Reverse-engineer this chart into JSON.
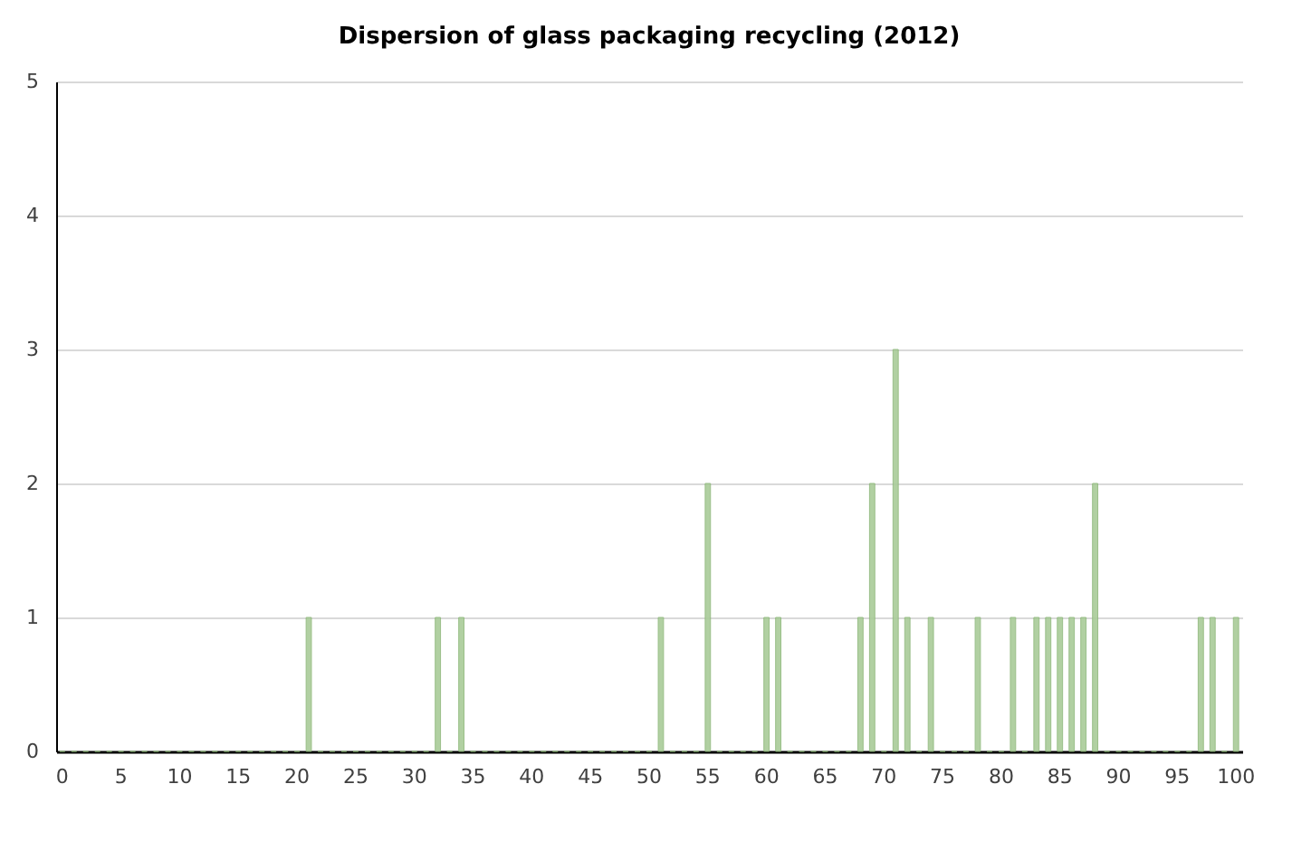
{
  "chart_data": {
    "type": "bar",
    "title": "Dispersion of glass packaging recycling (2012)",
    "categories": [
      "0",
      null,
      null,
      null,
      null,
      "5",
      null,
      null,
      null,
      null,
      "10",
      null,
      null,
      null,
      null,
      "15",
      null,
      null,
      null,
      null,
      "20",
      null,
      null,
      null,
      null,
      "25",
      null,
      null,
      null,
      null,
      "30",
      null,
      null,
      null,
      null,
      "35",
      null,
      null,
      null,
      null,
      "40",
      null,
      null,
      null,
      null,
      "45",
      null,
      null,
      null,
      null,
      "50",
      null,
      null,
      null,
      null,
      "55",
      null,
      null,
      null,
      null,
      "60",
      null,
      null,
      null,
      null,
      "65",
      null,
      null,
      null,
      null,
      "70",
      null,
      null,
      null,
      null,
      "75",
      null,
      null,
      null,
      null,
      "80",
      null,
      null,
      null,
      null,
      "85",
      null,
      null,
      null,
      null,
      "90",
      null,
      null,
      null,
      null,
      "95",
      null,
      null,
      null,
      null,
      "100"
    ],
    "values": [
      0,
      0,
      0,
      0,
      0,
      0,
      0,
      0,
      0,
      0,
      0,
      0,
      0,
      0,
      0,
      0,
      0,
      0,
      0,
      0,
      0,
      1,
      0,
      0,
      0,
      0,
      0,
      0,
      0,
      0,
      0,
      0,
      1,
      0,
      1,
      0,
      0,
      0,
      0,
      0,
      0,
      0,
      0,
      0,
      0,
      0,
      0,
      0,
      0,
      0,
      0,
      1,
      0,
      0,
      0,
      2,
      0,
      0,
      0,
      0,
      1,
      1,
      0,
      0,
      0,
      0,
      0,
      0,
      1,
      2,
      0,
      3,
      1,
      0,
      1,
      0,
      0,
      0,
      1,
      0,
      0,
      1,
      0,
      1,
      1,
      1,
      1,
      1,
      2,
      0,
      0,
      0,
      0,
      0,
      0,
      0,
      0,
      1,
      1,
      0,
      1
    ],
    "color": "#a9cc98",
    "ylim": [
      0,
      5
    ],
    "yticks": [
      0,
      1,
      2,
      3,
      4,
      5
    ],
    "grid": "y"
  }
}
